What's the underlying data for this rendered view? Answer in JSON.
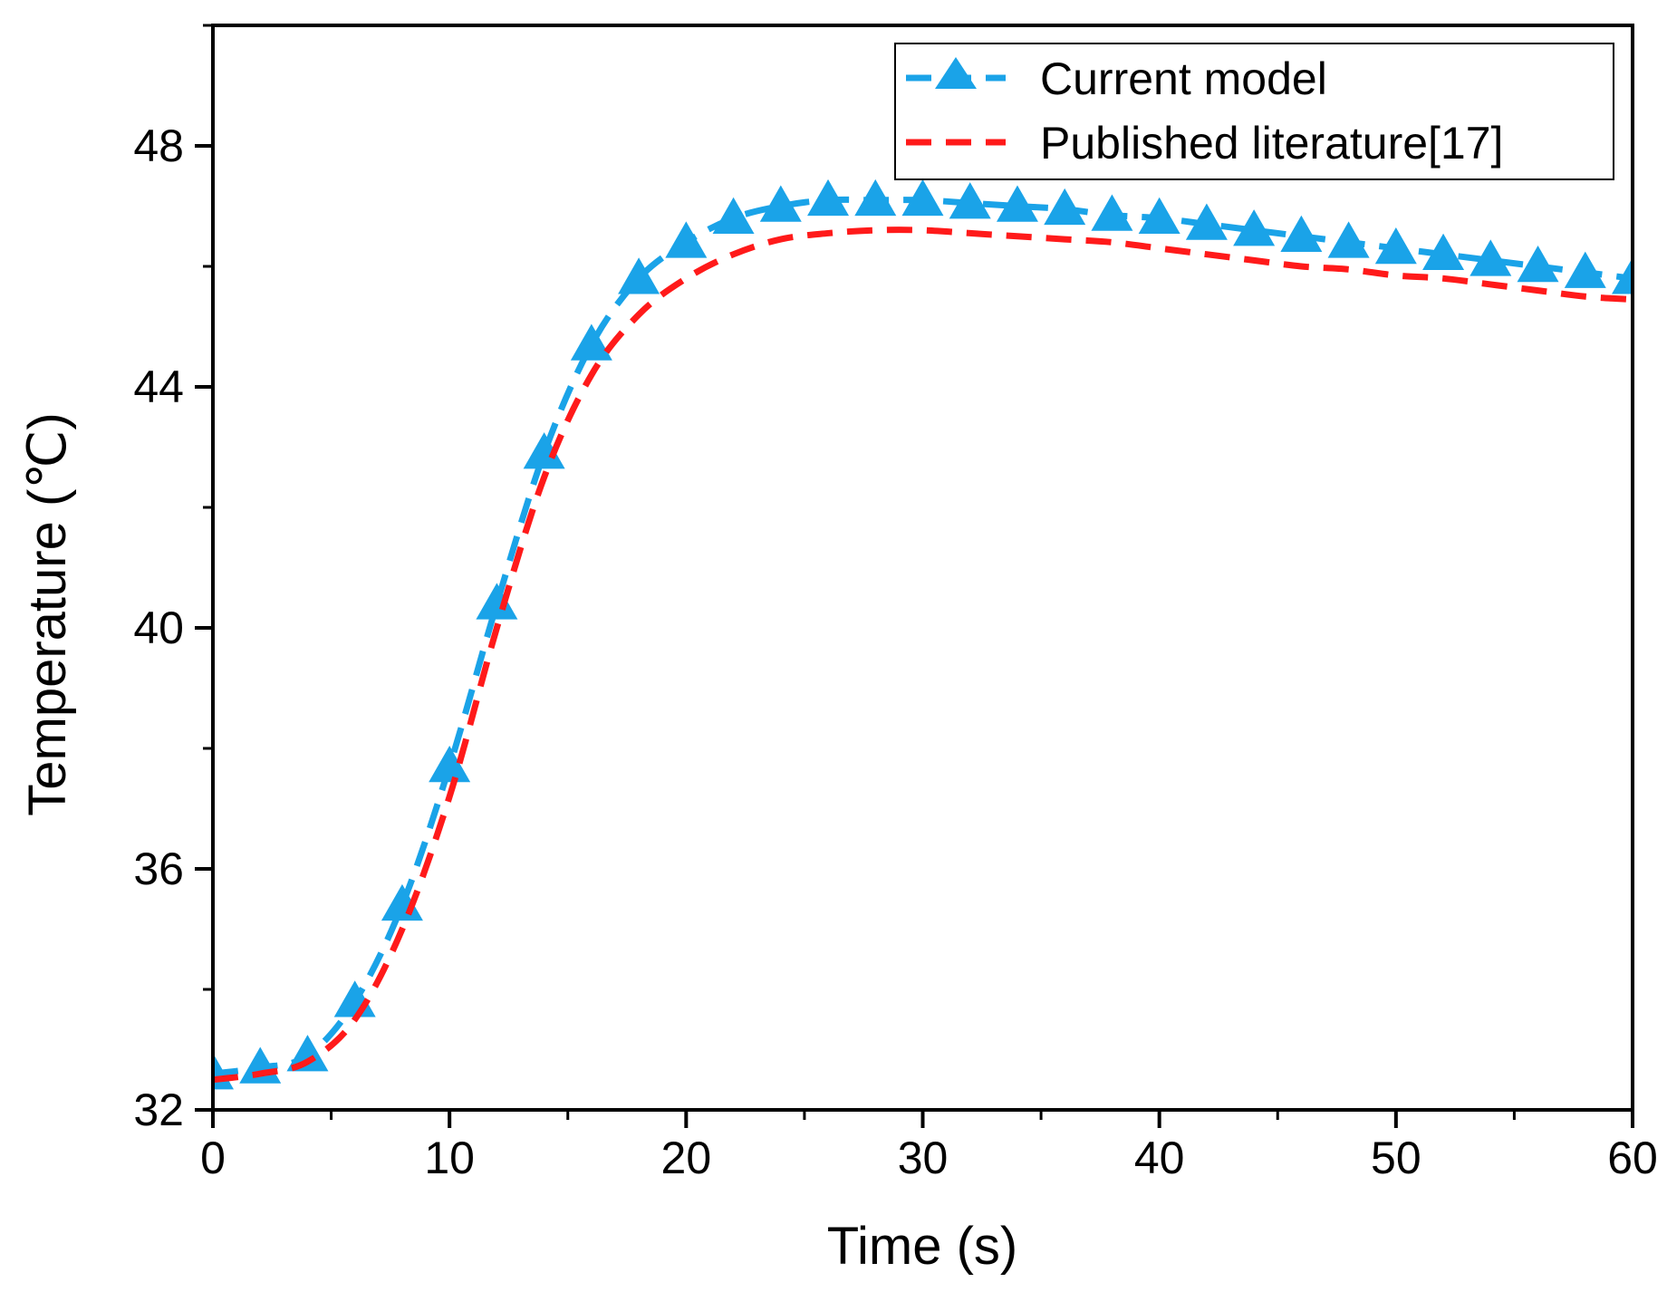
{
  "chart_data": {
    "type": "line",
    "title": "",
    "xlabel": "Time (s)",
    "ylabel": "Temperature (℃)",
    "xlim": [
      0,
      60
    ],
    "ylim": [
      32,
      50
    ],
    "xticks": [
      0,
      10,
      20,
      30,
      40,
      50,
      60
    ],
    "xtick_labels": [
      "0",
      "10",
      "20",
      "30",
      "40",
      "50",
      "60"
    ],
    "xminor": [
      5,
      15,
      25,
      35,
      45,
      55
    ],
    "yticks": [
      32,
      36,
      40,
      44,
      48
    ],
    "ytick_labels": [
      "32",
      "36",
      "40",
      "44",
      "48"
    ],
    "yminor": [
      34,
      38,
      42,
      46,
      50
    ],
    "grid": false,
    "legend_position": "top-right",
    "series": [
      {
        "name": "Current model",
        "color": "#1AA3E8",
        "style": "dashed",
        "marker": "triangle",
        "x": [
          0,
          2,
          4,
          6,
          8,
          10,
          12,
          14,
          16,
          18,
          20,
          22,
          24,
          26,
          28,
          30,
          32,
          34,
          36,
          38,
          40,
          42,
          44,
          46,
          48,
          50,
          52,
          54,
          56,
          58,
          60
        ],
        "y": [
          32.6,
          32.7,
          32.9,
          33.8,
          35.4,
          37.7,
          40.4,
          42.9,
          44.7,
          45.8,
          46.4,
          46.8,
          47.0,
          47.1,
          47.1,
          47.1,
          47.05,
          47.0,
          46.95,
          46.85,
          46.8,
          46.7,
          46.6,
          46.5,
          46.4,
          46.3,
          46.2,
          46.1,
          46.0,
          45.9,
          45.8
        ]
      },
      {
        "name": "Published literature[17]",
        "color": "#FF1A1A",
        "style": "dashed",
        "marker": "none",
        "x": [
          0,
          2,
          4,
          6,
          8,
          10,
          12,
          14,
          16,
          18,
          20,
          22,
          24,
          26,
          28,
          30,
          32,
          34,
          36,
          38,
          40,
          42,
          44,
          46,
          48,
          50,
          52,
          54,
          56,
          58,
          60
        ],
        "y": [
          32.5,
          32.6,
          32.8,
          33.5,
          35.0,
          37.2,
          40.0,
          42.5,
          44.2,
          45.2,
          45.8,
          46.2,
          46.45,
          46.55,
          46.6,
          46.6,
          46.55,
          46.5,
          46.45,
          46.4,
          46.3,
          46.2,
          46.1,
          46.0,
          45.95,
          45.85,
          45.8,
          45.7,
          45.6,
          45.5,
          45.45
        ]
      }
    ]
  }
}
